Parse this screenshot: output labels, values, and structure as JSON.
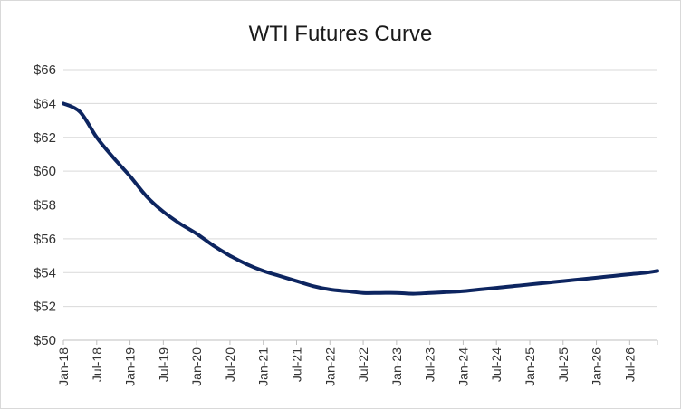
{
  "chart_data": {
    "type": "line",
    "title": "WTI Futures Curve",
    "xlabel": "",
    "ylabel": "",
    "ylim": [
      50,
      66
    ],
    "ystep": 2,
    "y_tick_labels": [
      "$50",
      "$52",
      "$54",
      "$56",
      "$58",
      "$60",
      "$62",
      "$64",
      "$66"
    ],
    "x_tick_labels": [
      "Jan-18",
      "Jul-18",
      "Jan-19",
      "Jul-19",
      "Jan-20",
      "Jul-20",
      "Jan-21",
      "Jul-21",
      "Jan-22",
      "Jul-22",
      "Jan-23",
      "Jul-23",
      "Jan-24",
      "Jul-24",
      "Jan-25",
      "Jul-25",
      "Jan-26",
      "Jul-26"
    ],
    "x_range": [
      "Jan-18",
      "Dec-26"
    ],
    "grid": "horizontal",
    "legend": "none",
    "line_color": "#0d2560",
    "series": [
      {
        "x": [
          "Jan-18",
          "Apr-18",
          "Jul-18",
          "Oct-18",
          "Jan-19",
          "Apr-19",
          "Jul-19",
          "Oct-19",
          "Jan-20",
          "Apr-20",
          "Jul-20",
          "Oct-20",
          "Jan-21",
          "Apr-21",
          "Jul-21",
          "Oct-21",
          "Jan-22",
          "Apr-22",
          "Jul-22",
          "Oct-22",
          "Jan-23",
          "Apr-23",
          "Jul-23",
          "Oct-23",
          "Jan-24",
          "Apr-24",
          "Jul-24",
          "Oct-24",
          "Jan-25",
          "Apr-25",
          "Jul-25",
          "Oct-25",
          "Jan-26",
          "Apr-26",
          "Jul-26",
          "Oct-26",
          "Dec-26"
        ],
        "y": [
          64.0,
          63.5,
          62.0,
          60.8,
          59.7,
          58.5,
          57.6,
          56.9,
          56.3,
          55.6,
          55.0,
          54.5,
          54.1,
          53.8,
          53.5,
          53.2,
          53.0,
          52.9,
          52.8,
          52.8,
          52.8,
          52.75,
          52.8,
          52.85,
          52.9,
          53.0,
          53.1,
          53.2,
          53.3,
          53.4,
          53.5,
          53.6,
          53.7,
          53.8,
          53.9,
          54.0,
          54.1
        ]
      }
    ]
  }
}
